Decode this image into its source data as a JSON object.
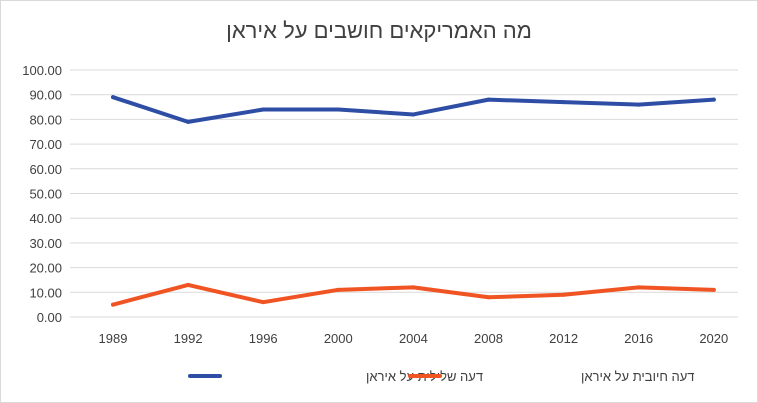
{
  "chart_data": {
    "type": "line",
    "title": "מה האמריקאים חושבים על איראן",
    "xlabel": "",
    "ylabel": "",
    "x": [
      "1989",
      "1992",
      "1996",
      "2000",
      "2004",
      "2008",
      "2012",
      "2016",
      "2020"
    ],
    "ylim": [
      0,
      100
    ],
    "yticks": [
      "0.00",
      "10.00",
      "20.00",
      "30.00",
      "40.00",
      "50.00",
      "60.00",
      "70.00",
      "80.00",
      "90.00",
      "100.00"
    ],
    "grid": true,
    "legend_position": "bottom",
    "series": [
      {
        "name": "דעה שלילית על איראן",
        "color": "#2e4ea6",
        "values": [
          89,
          79,
          84,
          84,
          82,
          88,
          87,
          86,
          88
        ]
      },
      {
        "name": "דעה חיובית על איראן",
        "color": "#f05423",
        "values": [
          5,
          13,
          6,
          11,
          12,
          8,
          9,
          12,
          11
        ]
      }
    ]
  }
}
